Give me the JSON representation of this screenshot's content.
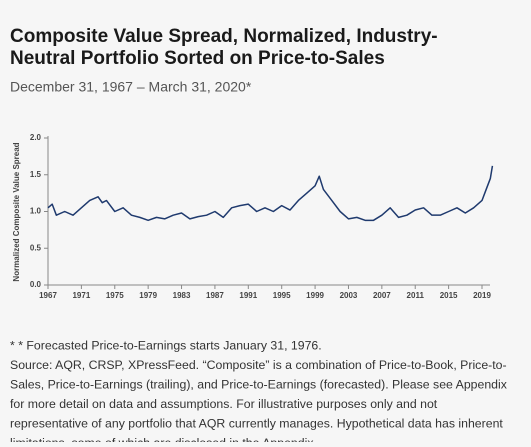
{
  "chart_data": {
    "type": "line",
    "title": [
      "Composite Value Spread, Normalized, Industry-",
      "Neutral Portfolio Sorted on Price-to-Sales"
    ],
    "subtitle": "December 31, 1967 – March 31, 2020*",
    "y_label": "Normalized Composite Value Spread",
    "x": [
      1967,
      1967.5,
      1968,
      1969,
      1970,
      1971,
      1972,
      1973,
      1973.5,
      1974,
      1975,
      1976,
      1977,
      1978,
      1979,
      1980,
      1981,
      1982,
      1983,
      1984,
      1985,
      1986,
      1987,
      1988,
      1989,
      1990,
      1991,
      1992,
      1993,
      1994,
      1995,
      1996,
      1997,
      1998,
      1999,
      1999.5,
      2000,
      2001,
      2002,
      2003,
      2004,
      2005,
      2006,
      2007,
      2008,
      2009,
      2010,
      2011,
      2012,
      2013,
      2014,
      2015,
      2016,
      2017,
      2018,
      2019,
      2019.5,
      2020,
      2020.25
    ],
    "series": [
      {
        "color": "#1f3a6e",
        "values": [
          1.05,
          1.1,
          0.95,
          1.0,
          0.95,
          1.05,
          1.15,
          1.2,
          1.12,
          1.15,
          1.0,
          1.05,
          0.95,
          0.92,
          0.88,
          0.92,
          0.9,
          0.95,
          0.98,
          0.9,
          0.93,
          0.95,
          1.0,
          0.92,
          1.05,
          1.08,
          1.1,
          1.0,
          1.05,
          1.0,
          1.08,
          1.02,
          1.15,
          1.25,
          1.35,
          1.48,
          1.3,
          1.15,
          1.0,
          0.9,
          0.92,
          0.88,
          0.88,
          0.95,
          1.05,
          0.92,
          0.95,
          1.02,
          1.05,
          0.95,
          0.95,
          1.0,
          1.05,
          0.98,
          1.05,
          1.15,
          1.3,
          1.45,
          1.62
        ]
      }
    ],
    "xlim": [
      1967,
      2020.5
    ],
    "xticks": [
      1967,
      1971,
      1975,
      1979,
      1983,
      1987,
      1991,
      1995,
      1999,
      2003,
      2007,
      2011,
      2015,
      2019
    ],
    "ylim": [
      0,
      2
    ],
    "yticks": [
      {
        "value": 0,
        "label": "0.0"
      },
      {
        "value": 0.5,
        "label": "0.5"
      },
      {
        "value": 1,
        "label": "1.0"
      },
      {
        "value": 1.5,
        "label": "1.5"
      },
      {
        "value": 2,
        "label": "2.0"
      }
    ]
  },
  "notes": [
    "* * Forecasted Price-to-Earnings starts January 31, 1976.",
    "Source: AQR, CRSP, XPressFeed. “Composite” is a combination of Price-to-Book, Price-to-",
    "Sales, Price-to-Earnings (trailing), and Price-to-Earnings (forecasted). Please see Appendix",
    "for more detail on data and assumptions. For illustrative purposes only and not",
    "representative of any portfolio that AQR currently manages. Hypothetical data has inherent",
    "limitations, some of which are disclosed in the Appendix."
  ]
}
